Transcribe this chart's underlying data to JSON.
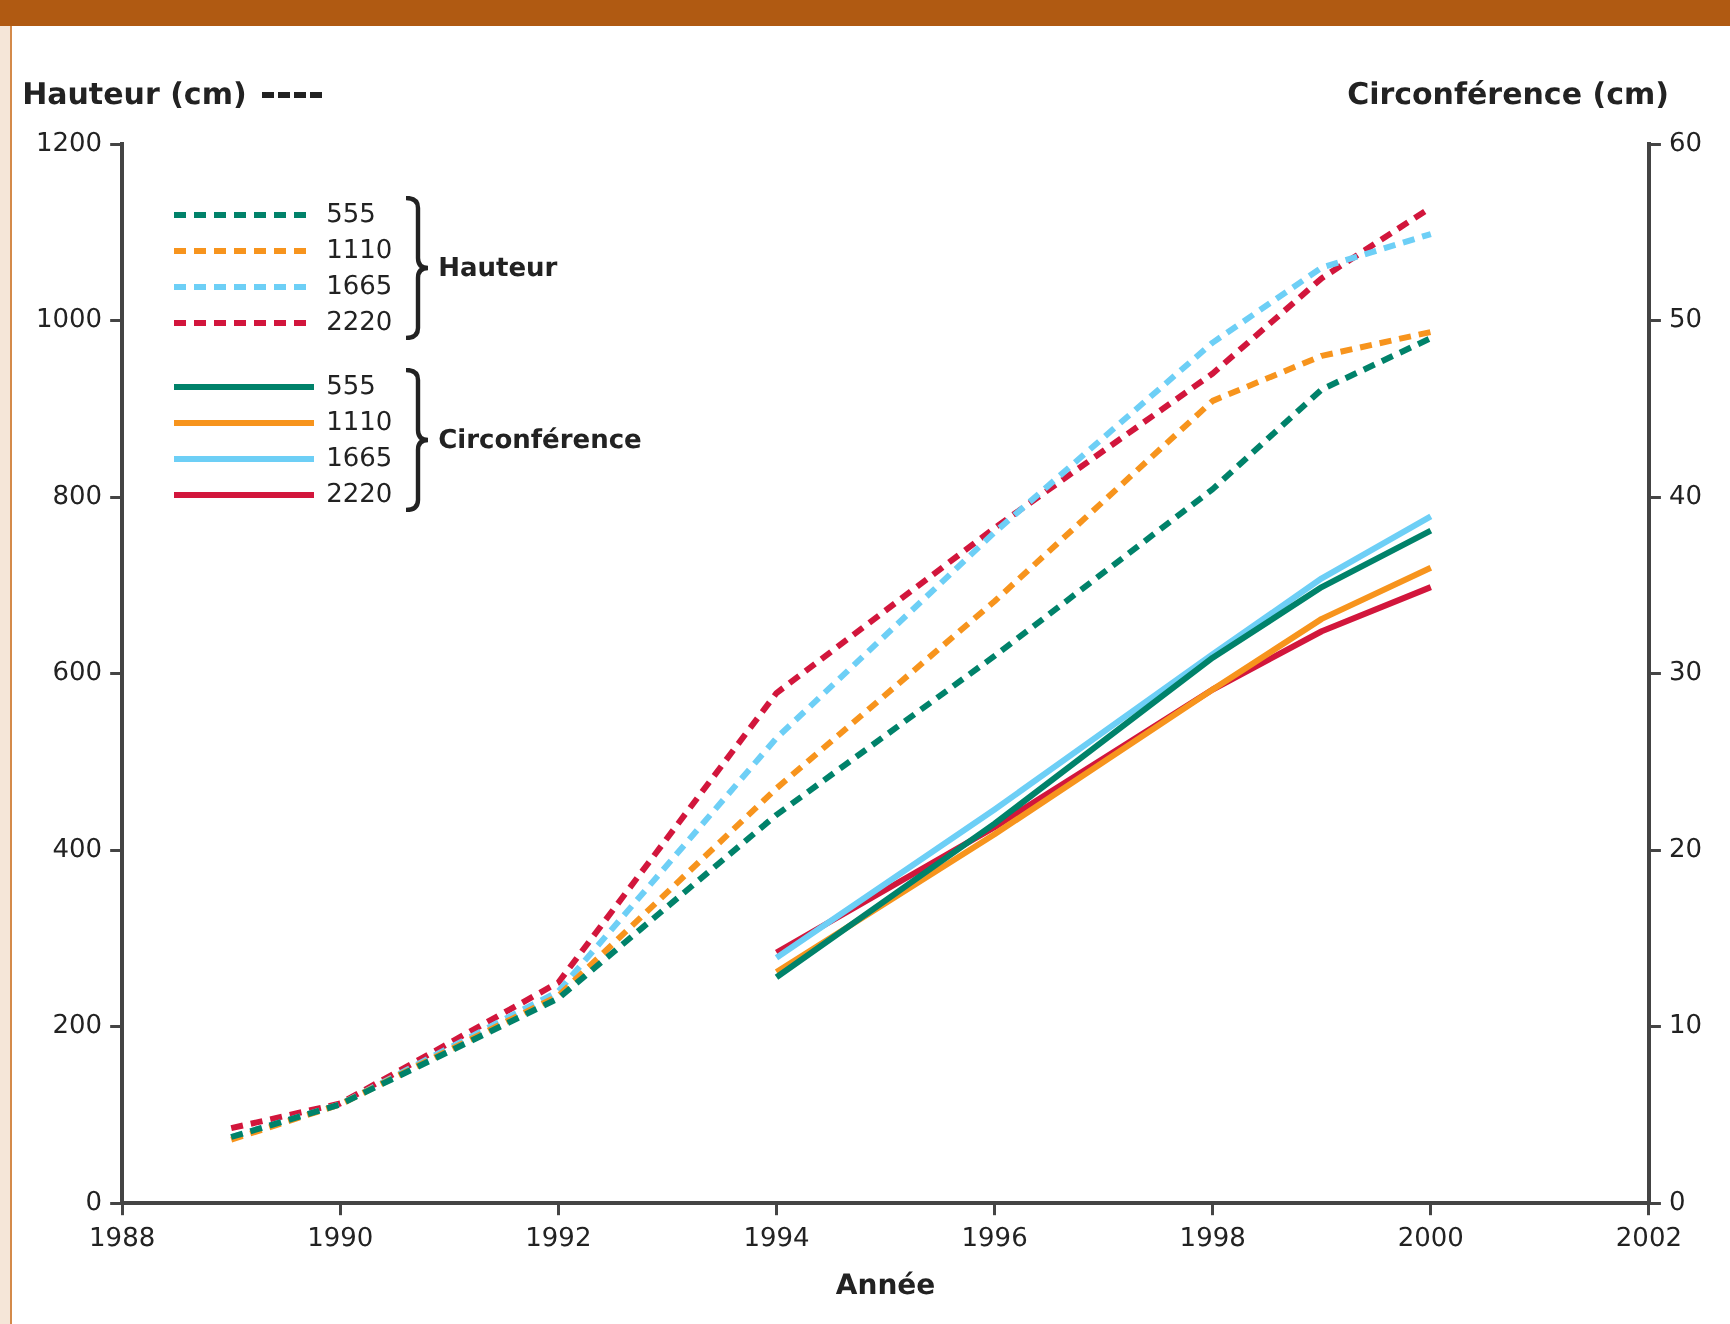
{
  "chart_data": {
    "type": "line",
    "xlabel": "Année",
    "ylabel": "Hauteur (cm)",
    "y2label": "Circonférence (cm)",
    "xlim": [
      1988,
      2002
    ],
    "xticks": [
      1988,
      1990,
      1992,
      1994,
      1996,
      1998,
      2000,
      2002
    ],
    "ylim": [
      0,
      1200
    ],
    "yticks": [
      0,
      200,
      400,
      600,
      800,
      1000,
      1200
    ],
    "y2lim": [
      0,
      60
    ],
    "y2ticks": [
      0,
      10,
      20,
      30,
      40,
      50,
      60
    ],
    "grid": false,
    "legend": "top left",
    "marker": "none",
    "annotations": [
      "Hauteur",
      "Circonférence"
    ],
    "series": [
      {
        "name": "555",
        "color": "#00826a",
        "line_style": "dashed",
        "x": [
          1989,
          1990,
          1992,
          1994,
          1996,
          1998,
          1999,
          2000
        ],
        "values": [
          75,
          112,
          232,
          440,
          620,
          809,
          922,
          980
        ]
      },
      {
        "name": "1110",
        "color": "#f7941d",
        "line_style": "dashed",
        "x": [
          1989,
          1990,
          1992,
          1994,
          1996,
          1998,
          1999,
          2000
        ],
        "values": [
          72,
          112,
          235,
          470,
          682,
          909,
          960,
          987
        ]
      },
      {
        "name": "1665",
        "color": "#6dcff6",
        "line_style": "dashed",
        "x": [
          1989,
          1990,
          1992,
          1994,
          1996,
          1998,
          1999,
          2000
        ],
        "values": [
          75,
          112,
          240,
          527,
          760,
          975,
          1060,
          1098
        ]
      },
      {
        "name": "2220",
        "color": "#d2163c",
        "line_style": "dashed",
        "x": [
          1989,
          1990,
          1992,
          1994,
          1996,
          1998,
          1999,
          2000
        ],
        "values": [
          85,
          113,
          250,
          578,
          765,
          940,
          1048,
          1128
        ]
      },
      {
        "name": "555",
        "color": "#00826a",
        "line_style": "solid",
        "axis": "y2",
        "x": [
          1994,
          1996,
          1998,
          1999,
          2000
        ],
        "values": [
          12.8,
          21.5,
          30.9,
          34.9,
          38.1
        ]
      },
      {
        "name": "1110",
        "color": "#f7941d",
        "line_style": "solid",
        "axis": "y2",
        "x": [
          1994,
          1996,
          1998,
          1999,
          2000
        ],
        "values": [
          13.1,
          20.9,
          29.1,
          33.1,
          36.0
        ]
      },
      {
        "name": "1665",
        "color": "#6dcff6",
        "line_style": "solid",
        "axis": "y2",
        "x": [
          1994,
          1996,
          1998,
          1999,
          2000
        ],
        "values": [
          13.9,
          22.3,
          31.1,
          35.4,
          38.9
        ]
      },
      {
        "name": "2220",
        "color": "#d2163c",
        "line_style": "solid",
        "axis": "y2",
        "x": [
          1994,
          1996,
          1998,
          1999,
          2000
        ],
        "values": [
          14.2,
          21.3,
          29.1,
          32.4,
          34.9
        ]
      }
    ]
  }
}
